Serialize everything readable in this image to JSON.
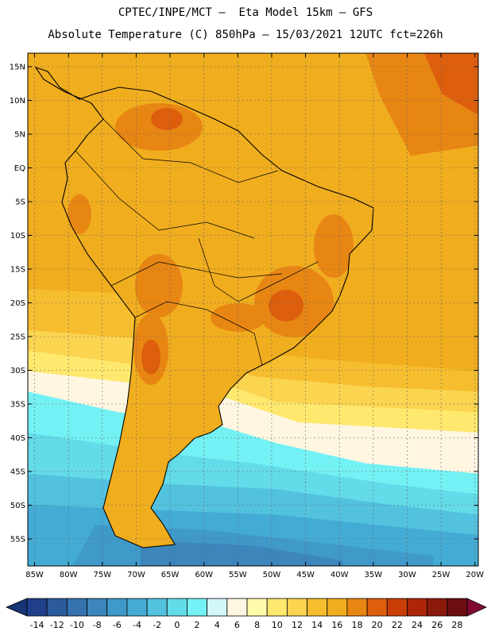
{
  "header": {
    "line1": "CPTEC/INPE/MCT –  Eta Model 15km – GFS",
    "line2": "Absolute Temperature (C) 850hPa – 15/03/2021 12UTC fct=226h"
  },
  "map": {
    "lon_range": [
      -86,
      -19.5
    ],
    "lat_range": [
      -59,
      17
    ],
    "lat_labels": [
      "15N",
      "10N",
      "5N",
      "EQ",
      "5S",
      "10S",
      "15S",
      "20S",
      "25S",
      "30S",
      "35S",
      "40S",
      "45S",
      "50S",
      "55S"
    ],
    "lat_values": [
      15,
      10,
      5,
      0,
      -5,
      -10,
      -15,
      -20,
      -25,
      -30,
      -35,
      -40,
      -45,
      -50,
      -55
    ],
    "lon_labels": [
      "85W",
      "80W",
      "75W",
      "70W",
      "65W",
      "60W",
      "55W",
      "50W",
      "45W",
      "40W",
      "35W",
      "30W",
      "25W",
      "20W"
    ],
    "lon_values": [
      -85,
      -80,
      -75,
      -70,
      -65,
      -60,
      -55,
      -50,
      -45,
      -40,
      -35,
      -30,
      -25,
      -20
    ],
    "background_color": "#f0ad1e"
  },
  "colorbar": {
    "labels": [
      "-14",
      "-12",
      "-10",
      "-8",
      "-6",
      "-4",
      "-2",
      "0",
      "2",
      "4",
      "6",
      "8",
      "10",
      "12",
      "14",
      "16",
      "18",
      "20",
      "22",
      "24",
      "26",
      "28"
    ],
    "colors": [
      "#1f3f8a",
      "#2b5b9c",
      "#3672ad",
      "#3c86bc",
      "#3f99c9",
      "#44abd4",
      "#52c2df",
      "#63dbe9",
      "#73f1f4",
      "#d3f6fb",
      "#fff6e2",
      "#fffbaa",
      "#fee86e",
      "#fbd450",
      "#f6be2f",
      "#f0ad1e",
      "#e88614",
      "#dd5e0c",
      "#c93e07",
      "#ad2608",
      "#8c1a0c",
      "#6c0e12"
    ],
    "low_color": "#163574",
    "high_color": "#820a30"
  }
}
